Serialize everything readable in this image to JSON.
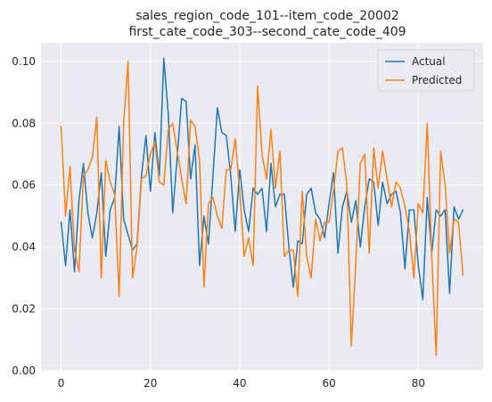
{
  "chart_data": {
    "type": "line",
    "title": "sales_region_code_101--item_code_20002\nfirst_cate_code_303--second_cate_code_409",
    "xlabel": "",
    "ylabel": "",
    "xlim": [
      -4.5,
      94.5
    ],
    "ylim": [
      0.0,
      0.106
    ],
    "xticks": [
      0,
      20,
      40,
      60,
      80
    ],
    "yticks": [
      0.0,
      0.02,
      0.04,
      0.06,
      0.08,
      0.1
    ],
    "ytick_labels": [
      "0.00",
      "0.02",
      "0.04",
      "0.06",
      "0.08",
      "0.10"
    ],
    "grid": true,
    "legend_position": "top-right",
    "series": [
      {
        "name": "Actual",
        "color": "#1f77b4",
        "values": [
          0.048,
          0.034,
          0.052,
          0.032,
          0.055,
          0.067,
          0.051,
          0.043,
          0.051,
          0.064,
          0.037,
          0.052,
          0.056,
          0.079,
          0.049,
          0.044,
          0.039,
          0.041,
          0.063,
          0.076,
          0.058,
          0.077,
          0.063,
          0.101,
          0.083,
          0.051,
          0.069,
          0.088,
          0.087,
          0.062,
          0.073,
          0.034,
          0.05,
          0.041,
          0.063,
          0.085,
          0.077,
          0.076,
          0.063,
          0.045,
          0.065,
          0.052,
          0.045,
          0.059,
          0.057,
          0.059,
          0.045,
          0.067,
          0.053,
          0.057,
          0.057,
          0.04,
          0.027,
          0.042,
          0.041,
          0.057,
          0.059,
          0.051,
          0.049,
          0.043,
          0.054,
          0.064,
          0.038,
          0.053,
          0.058,
          0.048,
          0.055,
          0.04,
          0.053,
          0.062,
          0.061,
          0.047,
          0.061,
          0.054,
          0.057,
          0.058,
          0.051,
          0.033,
          0.052,
          0.052,
          0.034,
          0.023,
          0.056,
          0.038,
          0.052,
          0.05,
          0.052,
          0.025,
          0.053,
          0.049,
          0.052
        ]
      },
      {
        "name": "Predicted",
        "color": "#ff7f0e",
        "values": [
          0.079,
          0.05,
          0.066,
          0.039,
          0.032,
          0.063,
          0.065,
          0.069,
          0.082,
          0.03,
          0.068,
          0.061,
          0.057,
          0.024,
          0.08,
          0.1,
          0.03,
          0.04,
          0.062,
          0.063,
          0.07,
          0.074,
          0.061,
          0.06,
          0.078,
          0.08,
          0.071,
          0.062,
          0.054,
          0.081,
          0.079,
          0.068,
          0.027,
          0.054,
          0.056,
          0.05,
          0.046,
          0.065,
          0.065,
          0.075,
          0.058,
          0.037,
          0.043,
          0.034,
          0.092,
          0.07,
          0.062,
          0.078,
          0.059,
          0.071,
          0.037,
          0.039,
          0.039,
          0.024,
          0.058,
          0.037,
          0.03,
          0.049,
          0.042,
          0.048,
          0.048,
          0.058,
          0.071,
          0.072,
          0.06,
          0.008,
          0.035,
          0.067,
          0.07,
          0.038,
          0.072,
          0.059,
          0.071,
          0.062,
          0.053,
          0.061,
          0.059,
          0.053,
          0.045,
          0.03,
          0.054,
          0.051,
          0.08,
          0.037,
          0.005,
          0.071,
          0.06,
          0.038,
          0.049,
          0.048,
          0.031
        ]
      }
    ]
  }
}
